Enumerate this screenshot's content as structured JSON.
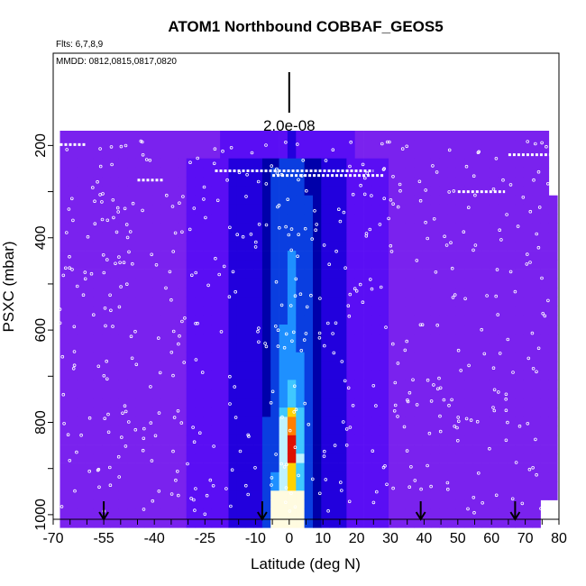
{
  "chart_data": {
    "type": "heatmap",
    "title": "ATOM1 Northbound COBBAF_GEOS5",
    "subtitle_flights": "Flts: 6,7,8,9",
    "subtitle_dates": "MMDD: 0812,0815,0817,0820",
    "xlabel": "Latitude (deg N)",
    "ylabel": "PSXC (mbar)",
    "xlim": [
      -70,
      80
    ],
    "ylim": [
      1010,
      0
    ],
    "x_ticks": [
      -70,
      -55,
      -40,
      -25,
      -10,
      0,
      10,
      20,
      30,
      40,
      50,
      60,
      70,
      80
    ],
    "x_tick_labels": [
      "-70",
      "-55",
      "-40",
      "-25",
      "-10",
      "0",
      "10",
      "20",
      "30",
      "40",
      "50",
      "60",
      "70",
      "80"
    ],
    "y_ticks": [
      200,
      400,
      600,
      800,
      1000
    ],
    "y_tick_labels": [
      "200",
      "400",
      "600",
      "800",
      "1000"
    ],
    "scale_bar": {
      "label": "2.0e-08",
      "x": 0,
      "p_top": 50,
      "p_bottom": 165
    },
    "flight_marker_latitudes": [
      -55,
      -8,
      39,
      67
    ],
    "colors": {
      "background": "#7a22ee",
      "scale": [
        "#7a22ee",
        "#5a0ef4",
        "#2200dd",
        "#0000aa",
        "#0a3ee0",
        "#1e90ff",
        "#3fc8ff",
        "#bff2ff",
        "#fffbe0",
        "#ffd200",
        "#ff7f00",
        "#dd1100"
      ],
      "points": "#ffffff"
    },
    "color_scale_levels": [
      0,
      1,
      2,
      3,
      4,
      5,
      6,
      7,
      8,
      9,
      10,
      11
    ],
    "grid": false,
    "legend": "none"
  }
}
